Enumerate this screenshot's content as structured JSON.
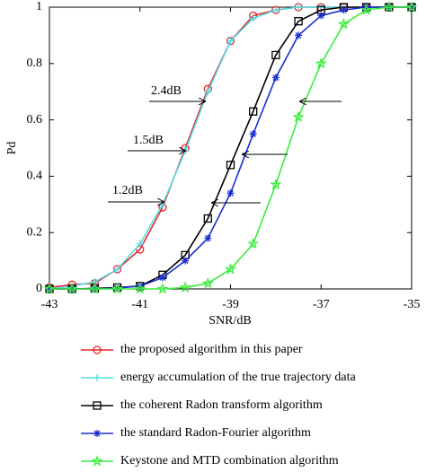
{
  "chart_data": {
    "type": "line",
    "x_label": "SNR/dB",
    "y_label": "Pd",
    "x": [
      -43,
      -42.5,
      -42,
      -41.5,
      -41,
      -40.5,
      -40,
      -39.5,
      -39,
      -38.5,
      -38,
      -37.5,
      -37,
      -36.5,
      -36,
      -35.5,
      -35
    ],
    "xlim": [
      -43,
      -35
    ],
    "xticks": [
      -43,
      -41,
      -39,
      -37,
      -35
    ],
    "ylim": [
      0,
      1
    ],
    "yticks": [
      0,
      0.2,
      0.4,
      0.6,
      0.8,
      1
    ],
    "annotations": [
      "2.4dB",
      "1.5dB",
      "1.2dB"
    ],
    "series": [
      {
        "name": "the proposed algorithm in this paper",
        "color": "#e8262a",
        "marker": "circle",
        "values": [
          0.005,
          0.015,
          0.02,
          0.07,
          0.14,
          0.29,
          0.5,
          0.71,
          0.88,
          0.97,
          0.99,
          1,
          1,
          1,
          1,
          1,
          1
        ]
      },
      {
        "name": "energy accumulation of the true trajectory data",
        "color": "#4fe0e8",
        "marker": "plus",
        "values": [
          0,
          0.01,
          0.025,
          0.07,
          0.16,
          0.3,
          0.49,
          0.7,
          0.88,
          0.96,
          0.99,
          1,
          1,
          1,
          1,
          1,
          1
        ]
      },
      {
        "name": "the coherent Radon transform algorithm",
        "color": "#000000",
        "marker": "square",
        "values": [
          0,
          0,
          0.002,
          0.005,
          0.01,
          0.05,
          0.12,
          0.25,
          0.44,
          0.63,
          0.83,
          0.95,
          0.99,
          1,
          1,
          1,
          1
        ]
      },
      {
        "name": "the standard Radon-Fourier algorithm",
        "color": "#1a2fd1",
        "marker": "asterisk",
        "values": [
          0,
          0,
          0,
          0.003,
          0.01,
          0.04,
          0.1,
          0.18,
          0.34,
          0.55,
          0.75,
          0.9,
          0.97,
          0.99,
          1,
          1,
          1
        ]
      },
      {
        "name": "Keystone and MTD combination algorithm",
        "color": "#3cec3c",
        "marker": "star",
        "values": [
          0,
          0,
          0,
          0,
          0,
          0,
          0.005,
          0.02,
          0.07,
          0.16,
          0.37,
          0.61,
          0.8,
          0.94,
          0.99,
          1,
          1
        ]
      }
    ]
  }
}
